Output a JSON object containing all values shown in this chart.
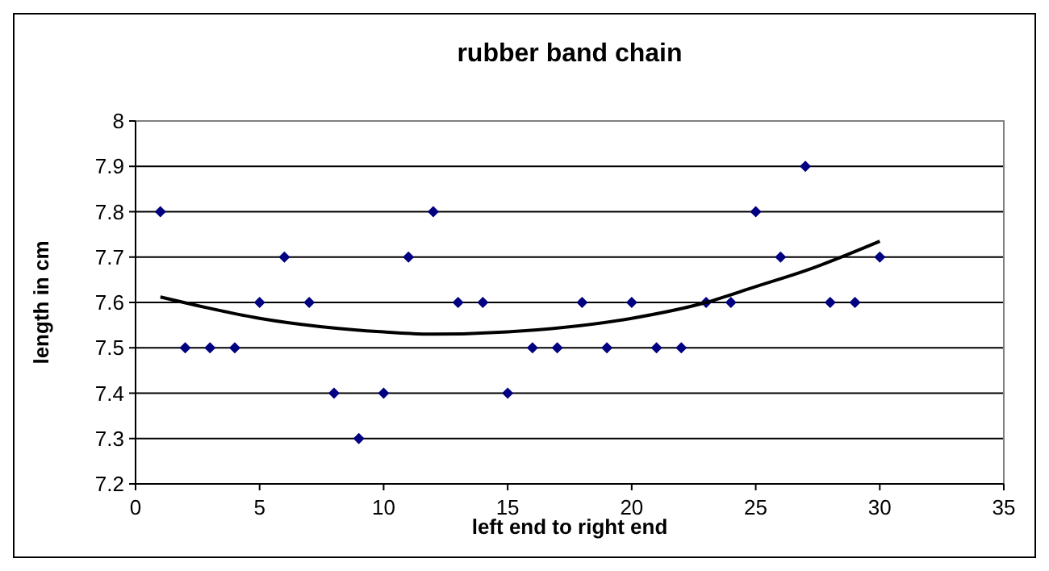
{
  "chart_data": {
    "type": "scatter",
    "title": "rubber band chain",
    "xlabel": "left end to right end",
    "ylabel": "length in cm",
    "xlim": [
      0,
      35
    ],
    "xticks": [
      0,
      5,
      10,
      15,
      20,
      25,
      30,
      35
    ],
    "ylim": [
      7.2,
      8
    ],
    "yticks": [
      7.2,
      7.3,
      7.4,
      7.5,
      7.6,
      7.7,
      7.8,
      7.9,
      8
    ],
    "grid": "y",
    "series": [
      {
        "color": "#000080",
        "marker": "diamond",
        "x": [
          1,
          2,
          3,
          4,
          5,
          6,
          7,
          8,
          9,
          10,
          11,
          12,
          13,
          14,
          15,
          16,
          17,
          18,
          19,
          20,
          21,
          22,
          23,
          24,
          25,
          26,
          27,
          28,
          29,
          30
        ],
        "values": [
          7.8,
          7.5,
          7.5,
          7.5,
          7.6,
          7.7,
          7.6,
          7.4,
          7.3,
          7.4,
          7.7,
          7.8,
          7.6,
          7.6,
          7.4,
          7.5,
          7.5,
          7.6,
          7.5,
          7.6,
          7.5,
          7.5,
          7.6,
          7.6,
          7.8,
          7.7,
          7.9,
          7.6,
          7.6,
          7.7
        ]
      },
      {
        "type": "line",
        "color": "#000000",
        "marker": "none",
        "x": [
          1,
          5,
          10,
          12,
          15,
          20,
          23,
          25,
          27,
          30
        ],
        "values": [
          7.612,
          7.565,
          7.535,
          7.53,
          7.535,
          7.565,
          7.6,
          7.635,
          7.67,
          7.735
        ]
      }
    ]
  }
}
